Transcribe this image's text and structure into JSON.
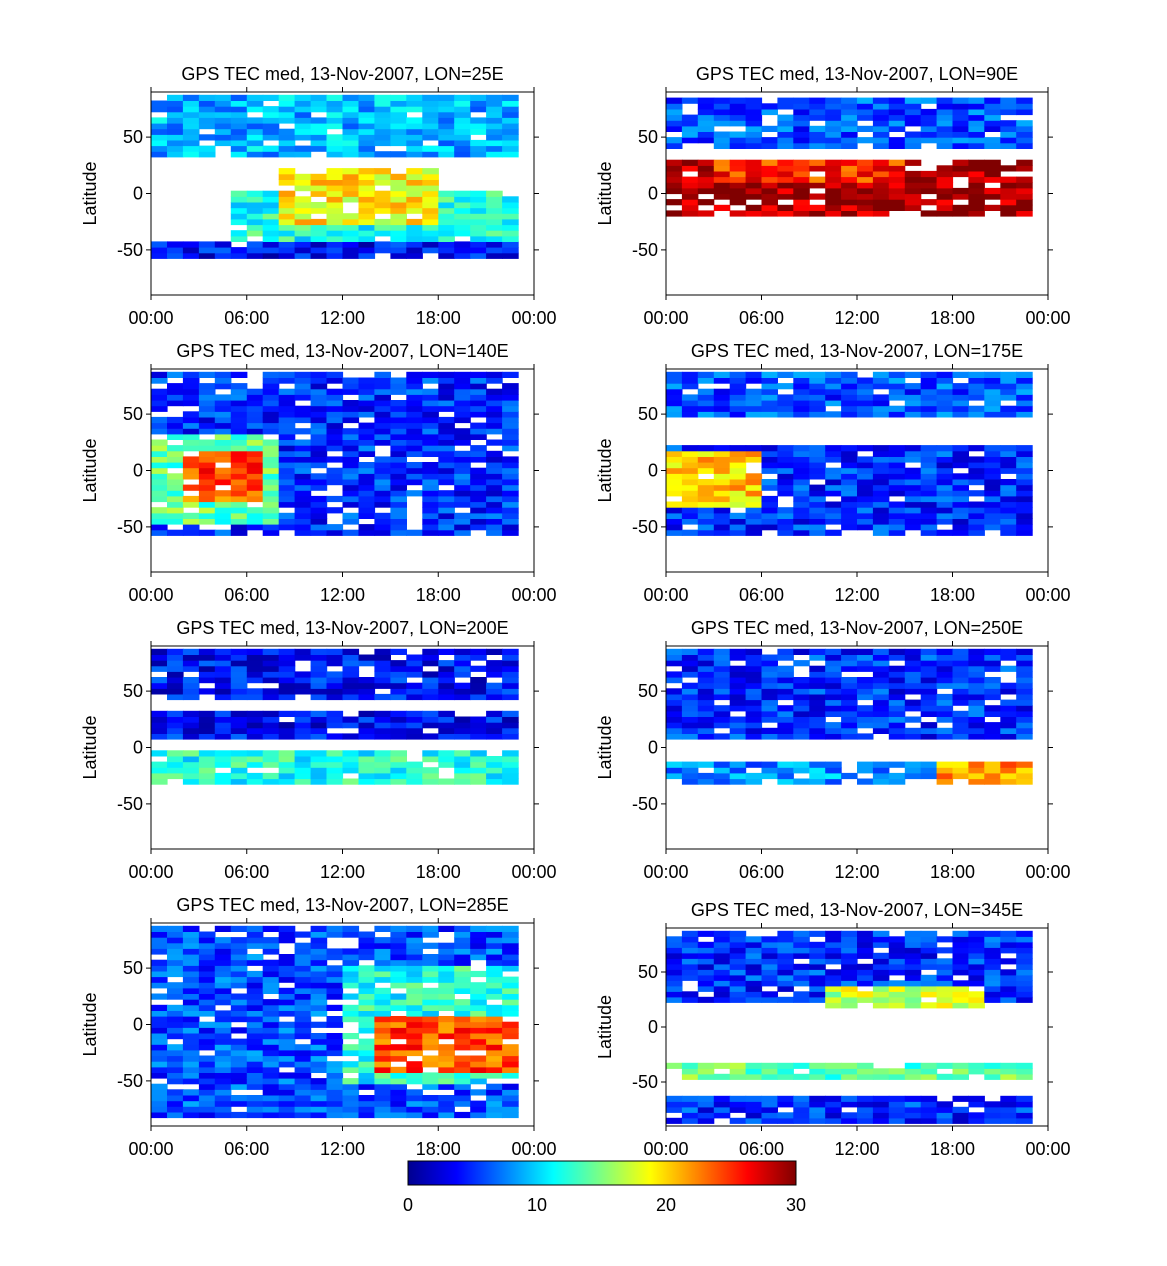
{
  "figure": {
    "colorbar": {
      "min": 0,
      "max": 30,
      "ticks": [
        "0",
        "10",
        "20",
        "30"
      ]
    }
  },
  "chart_data": [
    {
      "type": "heatmap",
      "title": "GPS TEC med, 13-Nov-2007, LON=25E",
      "ylabel": "Latitude",
      "xticks": [
        "00:00",
        "06:00",
        "12:00",
        "18:00",
        "00:00"
      ],
      "yticks": [
        "50",
        "0",
        "-50"
      ],
      "xlim_hours": [
        0,
        24
      ],
      "ylim": [
        -90,
        90
      ],
      "grid": false,
      "features": {
        "data_lat_range": [
          -87.5,
          87.5
        ],
        "bands": [
          {
            "lat": [
              35,
              85
            ],
            "t": [
              0,
              23
            ],
            "value": 9
          },
          {
            "lat": [
              -40,
              0
            ],
            "t": [
              5,
              23
            ],
            "value": 12
          },
          {
            "lat": [
              -25,
              20
            ],
            "t": [
              8,
              18
            ],
            "value": 19
          },
          {
            "lat": [
              -55,
              -45
            ],
            "t": [
              0,
              23
            ],
            "value": 4
          }
        ]
      }
    },
    {
      "type": "heatmap",
      "title": "GPS TEC med, 13-Nov-2007, LON=90E",
      "ylabel": "Latitude",
      "xticks": [
        "00:00",
        "06:00",
        "12:00",
        "18:00",
        "00:00"
      ],
      "yticks": [
        "50",
        "0",
        "-50"
      ],
      "xlim_hours": [
        0,
        24
      ],
      "ylim": [
        -90,
        90
      ],
      "grid": false,
      "features": {
        "data_lat_range": [
          -20,
          87.5
        ],
        "bands": [
          {
            "lat": [
              40,
              85
            ],
            "t": [
              0,
              23
            ],
            "value": 6
          },
          {
            "lat": [
              -20,
              30
            ],
            "t": [
              0,
              23
            ],
            "value": 29
          },
          {
            "lat": [
              10,
              30
            ],
            "t": [
              3,
              15
            ],
            "value": 25
          }
        ]
      }
    },
    {
      "type": "heatmap",
      "title": "GPS TEC med, 13-Nov-2007, LON=140E",
      "ylabel": "Latitude",
      "xticks": [
        "00:00",
        "06:00",
        "12:00",
        "18:00",
        "00:00"
      ],
      "yticks": [
        "50",
        "0",
        "-50"
      ],
      "xlim_hours": [
        0,
        24
      ],
      "ylim": [
        -90,
        90
      ],
      "grid": false,
      "features": {
        "data_lat_range": [
          -87.5,
          87.5
        ],
        "bands": [
          {
            "lat": [
              -55,
              85
            ],
            "t": [
              0,
              23
            ],
            "value": 5
          },
          {
            "lat": [
              -45,
              30
            ],
            "t": [
              0,
              8
            ],
            "value": 14
          },
          {
            "lat": [
              -25,
              15
            ],
            "t": [
              2,
              7
            ],
            "value": 24
          }
        ]
      }
    },
    {
      "type": "heatmap",
      "title": "GPS TEC med, 13-Nov-2007, LON=175E",
      "ylabel": "Latitude",
      "xticks": [
        "00:00",
        "06:00",
        "12:00",
        "18:00",
        "00:00"
      ],
      "yticks": [
        "50",
        "0",
        "-50"
      ],
      "xlim_hours": [
        0,
        24
      ],
      "ylim": [
        -90,
        90
      ],
      "grid": false,
      "features": {
        "data_lat_range": [
          -87.5,
          87.5
        ],
        "bands": [
          {
            "lat": [
              50,
              85
            ],
            "t": [
              0,
              23
            ],
            "value": 6
          },
          {
            "lat": [
              -55,
              20
            ],
            "t": [
              0,
              23
            ],
            "value": 5
          },
          {
            "lat": [
              -30,
              15
            ],
            "t": [
              0,
              6
            ],
            "value": 20
          }
        ]
      }
    },
    {
      "type": "heatmap",
      "title": "GPS TEC med, 13-Nov-2007, LON=200E",
      "ylabel": "Latitude",
      "xticks": [
        "00:00",
        "06:00",
        "12:00",
        "18:00",
        "00:00"
      ],
      "yticks": [
        "50",
        "0",
        "-50"
      ],
      "xlim_hours": [
        0,
        24
      ],
      "ylim": [
        -90,
        90
      ],
      "grid": false,
      "features": {
        "data_lat_range": [
          -87.5,
          87.5
        ],
        "bands": [
          {
            "lat": [
              45,
              85
            ],
            "t": [
              0,
              23
            ],
            "value": 4
          },
          {
            "lat": [
              10,
              30
            ],
            "t": [
              0,
              23
            ],
            "value": 4
          },
          {
            "lat": [
              -30,
              -5
            ],
            "t": [
              0,
              23
            ],
            "value": 12
          }
        ]
      }
    },
    {
      "type": "heatmap",
      "title": "GPS TEC med, 13-Nov-2007, LON=250E",
      "ylabel": "Latitude",
      "xticks": [
        "00:00",
        "06:00",
        "12:00",
        "18:00",
        "00:00"
      ],
      "yticks": [
        "50",
        "0",
        "-50"
      ],
      "xlim_hours": [
        0,
        24
      ],
      "ylim": [
        -90,
        90
      ],
      "grid": false,
      "features": {
        "data_lat_range": [
          -87.5,
          87.5
        ],
        "bands": [
          {
            "lat": [
              10,
              85
            ],
            "t": [
              0,
              23
            ],
            "value": 5
          },
          {
            "lat": [
              -30,
              -15
            ],
            "t": [
              0,
              23
            ],
            "value": 8
          },
          {
            "lat": [
              -30,
              -15
            ],
            "t": [
              17,
              23
            ],
            "value": 22
          }
        ]
      }
    },
    {
      "type": "heatmap",
      "title": "GPS TEC med, 13-Nov-2007, LON=285E",
      "ylabel": "Latitude",
      "xticks": [
        "00:00",
        "06:00",
        "12:00",
        "18:00",
        "00:00"
      ],
      "yticks": [
        "50",
        "0",
        "-50"
      ],
      "xlim_hours": [
        0,
        24
      ],
      "ylim": [
        -90,
        90
      ],
      "grid": false,
      "features": {
        "data_lat_range": [
          -87.5,
          87.5
        ],
        "bands": [
          {
            "lat": [
              -80,
              85
            ],
            "t": [
              0,
              23
            ],
            "value": 6
          },
          {
            "lat": [
              -50,
              50
            ],
            "t": [
              12,
              23
            ],
            "value": 12
          },
          {
            "lat": [
              -40,
              5
            ],
            "t": [
              14,
              23
            ],
            "value": 24
          }
        ]
      }
    },
    {
      "type": "heatmap",
      "title": "GPS TEC med, 13-Nov-2007, LON=345E",
      "ylabel": "Latitude",
      "xticks": [
        "00:00",
        "06:00",
        "12:00",
        "18:00",
        "00:00"
      ],
      "yticks": [
        "50",
        "0",
        "-50"
      ],
      "xlim_hours": [
        0,
        24
      ],
      "ylim": [
        -90,
        90
      ],
      "grid": false,
      "features": {
        "data_lat_range": [
          -87.5,
          87.5
        ],
        "bands": [
          {
            "lat": [
              25,
              85
            ],
            "t": [
              0,
              23
            ],
            "value": 5
          },
          {
            "lat": [
              20,
              35
            ],
            "t": [
              10,
              20
            ],
            "value": 17
          },
          {
            "lat": [
              -45,
              -35
            ],
            "t": [
              0,
              23
            ],
            "value": 14
          },
          {
            "lat": [
              -85,
              -65
            ],
            "t": [
              0,
              23
            ],
            "value": 5
          }
        ]
      }
    }
  ]
}
